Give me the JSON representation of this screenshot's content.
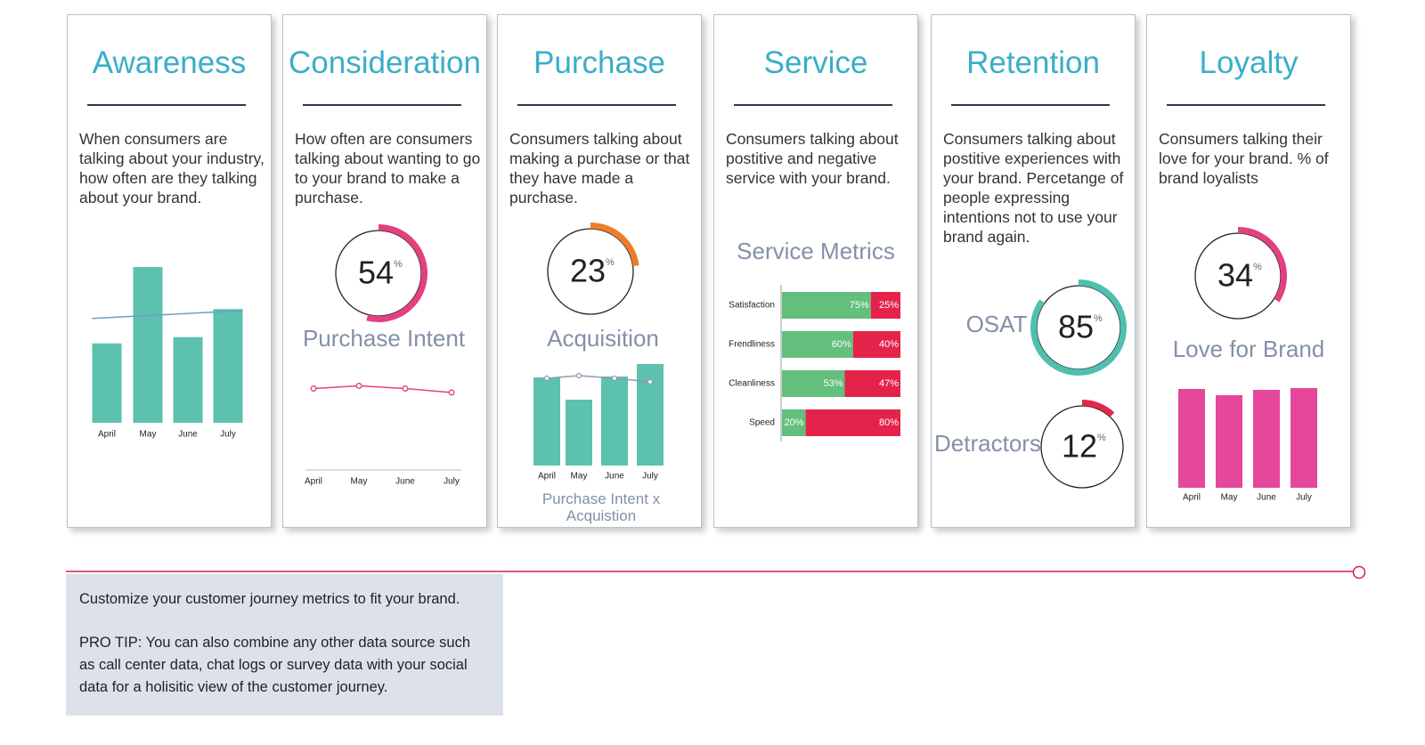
{
  "cards": [
    {
      "title": "Awareness",
      "description": "When consumers are talking about your industry, how often are they talking about your brand.",
      "chart": {
        "type": "bar",
        "categories": [
          "April",
          "May",
          "June",
          "July"
        ],
        "values": [
          51,
          100,
          55,
          73
        ],
        "color": "#5cc1ae",
        "trend": [
          67,
          72
        ],
        "trend_color": "#6a9fc9",
        "ylim": [
          0,
          100
        ]
      }
    },
    {
      "title": "Consideration",
      "description": "How often are consumers talking about wanting to go to your brand to make a purchase.",
      "gauges": [
        {
          "value": 54,
          "unit": "%",
          "label": "Purchase Intent",
          "color": "#e2407f"
        }
      ],
      "chart": {
        "type": "line",
        "categories": [
          "April",
          "May",
          "June",
          "July"
        ],
        "values": [
          61,
          63,
          61,
          58
        ],
        "color": "#e2407f",
        "ylim": [
          0,
          100
        ]
      }
    },
    {
      "title": "Purchase",
      "description": "Consumers talking about making a purchase or that they have made a purchase.",
      "gauges": [
        {
          "value": 23,
          "unit": "%",
          "label": "Acquisition",
          "color": "#ee7d2b"
        }
      ],
      "chart": {
        "type": "combo",
        "categories": [
          "April",
          "May",
          "June",
          "July"
        ],
        "values": [
          99,
          74,
          100,
          114
        ],
        "color": "#5cc1ae",
        "line_values": [
          98,
          101,
          98,
          94
        ],
        "line_color": "#8e9bb0",
        "caption": "Purchase Intent x Acquistion",
        "ylim": [
          0,
          120
        ]
      }
    },
    {
      "title": "Service",
      "description": "Consumers talking about postitive and negative service with your brand.",
      "subtitle": "Service Metrics",
      "chart": {
        "type": "stacked_hbar",
        "categories": [
          "Satisfaction",
          "Frendliness",
          "Cleanliness",
          "Speed"
        ],
        "xlim": [
          0,
          100
        ],
        "series": [
          {
            "color": "#63bf7b",
            "values": [
              75,
              60,
              53,
              20
            ],
            "value_labels": [
              "75%",
              "60%",
              "53%",
              "20%"
            ]
          },
          {
            "color": "#e4234a",
            "values": [
              25,
              40,
              47,
              80
            ],
            "value_labels": [
              "25%",
              "40%",
              "47%",
              "80%"
            ]
          }
        ]
      }
    },
    {
      "title": "Retention",
      "description": "Consumers talking about postitive experiences with your brand. Percetange of people expressing intentions not to use your brand again.",
      "gauges": [
        {
          "value": 85,
          "unit": "%",
          "label": "OSAT",
          "color": "#4fbfb0"
        },
        {
          "value": 12,
          "unit": "%",
          "label": "Detractors",
          "color": "#e0294a"
        }
      ]
    },
    {
      "title": "Loyalty",
      "description": "Consumers talking their love for your brand.  % of brand loyalists",
      "gauges": [
        {
          "value": 34,
          "unit": "%",
          "label": "Love for Brand",
          "color": "#e2407f"
        }
      ],
      "chart": {
        "type": "bar",
        "categories": [
          "April",
          "May",
          "June",
          "July"
        ],
        "values": [
          111,
          104,
          110,
          112
        ],
        "color": "#e5479a",
        "ylim": [
          0,
          120
        ]
      }
    }
  ],
  "footer": {
    "intro": "Customize your customer journey metrics to fit your brand.",
    "tip": "PRO TIP: You can also combine any other data source such as call center data, chat logs or survey data with your social data for a holisitic view of the customer journey."
  }
}
